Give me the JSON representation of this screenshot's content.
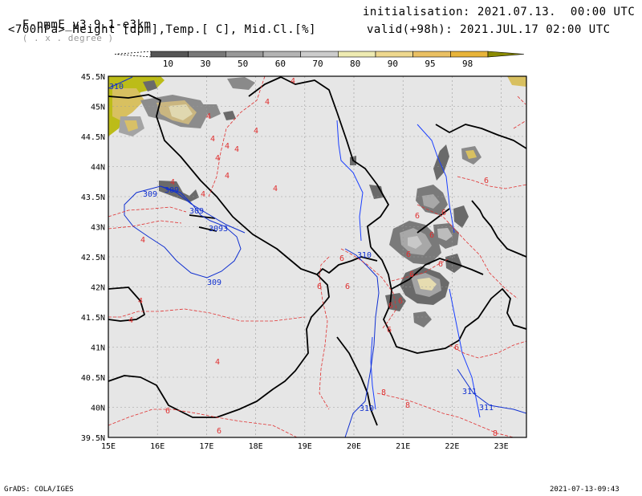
{
  "header": {
    "model": "F-nmmE_v3.9.1-e3km",
    "projection": "( . x . degree )",
    "initialisation_label": "initialisation: 2021.07.13.  00:00 UTC",
    "fields": "<700hPa> Height [dpm],Temp.[ C], Mid.Cl.[%]",
    "valid_label": "valid(+98h): 2021.JUL.17 02:00 UTC"
  },
  "colorbar": {
    "labels": [
      "10",
      "30",
      "50",
      "60",
      "70",
      "80",
      "90",
      "95",
      "98"
    ],
    "colors": [
      "#555555",
      "#777777",
      "#999999",
      "#b4b4b4",
      "#cccccc",
      "#eeebb2",
      "#eed88e",
      "#eac063",
      "#e8b43a",
      "#8a8a00"
    ]
  },
  "map": {
    "lat_labels": [
      "45.5N",
      "45N",
      "44.5N",
      "44N",
      "43.5N",
      "43N",
      "42.5N",
      "42N",
      "41.5N",
      "41N",
      "40.5N",
      "40N",
      "39.5N"
    ],
    "lon_labels": [
      "15E",
      "16E",
      "17E",
      "18E",
      "19E",
      "20E",
      "21E",
      "22E",
      "23E"
    ],
    "height_contour_labels": [
      "310",
      "309",
      "309",
      "309",
      "3093",
      "309",
      "310",
      "311",
      "311",
      "310"
    ],
    "temp_contour_labels": [
      "4",
      "4",
      "4",
      "4",
      "4",
      "4",
      "4",
      "4",
      "4",
      "4",
      "4",
      "4",
      "4",
      "4",
      "4",
      "4",
      "6",
      "6",
      "6",
      "6",
      "6",
      "6",
      "6",
      "6",
      "6",
      "6",
      "6",
      "6",
      "6",
      "6",
      "8",
      "8",
      "6",
      "8",
      "6"
    ],
    "colors": {
      "land": "#e6e6e6",
      "height": "#1030d0",
      "temp": "#e03030",
      "border": "#000000",
      "river": "#1a3fff"
    }
  },
  "footer": {
    "left": "GrADS: COLA/IGES",
    "right": "2021-07-13-09:43"
  }
}
